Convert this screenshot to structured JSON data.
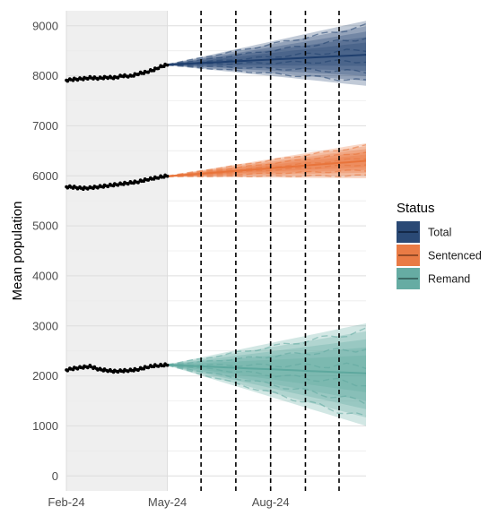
{
  "chart_data": {
    "type": "line",
    "xlabel": "",
    "ylabel": "Mean population",
    "ylim": [
      -300,
      9300
    ],
    "yticks": [
      0,
      1000,
      2000,
      3000,
      4000,
      5000,
      6000,
      7000,
      8000,
      9000
    ],
    "xlim": [
      "2024-02-01",
      "2024-10-25"
    ],
    "xticks": [
      {
        "date": "2024-02-01",
        "label": "Feb-24"
      },
      {
        "date": "2024-05-01",
        "label": "May-24"
      },
      {
        "date": "2024-08-01",
        "label": "Aug-24"
      }
    ],
    "shaded_region": {
      "from": "2024-02-01",
      "to": "2024-05-01",
      "color": "#efefef"
    },
    "vlines": [
      "2024-05-31",
      "2024-07-01",
      "2024-08-01",
      "2024-09-01",
      "2024-10-01"
    ],
    "forecast_start": "2024-05-01",
    "forecast_end": "2024-10-25",
    "legend": {
      "title": "Status",
      "position": "right"
    },
    "series": [
      {
        "name": "Total",
        "color": "#1f3f6e",
        "observed": [
          [
            "2024-02-01",
            7910
          ],
          [
            "2024-02-08",
            7930
          ],
          [
            "2024-02-15",
            7940
          ],
          [
            "2024-02-22",
            7960
          ],
          [
            "2024-03-01",
            7950
          ],
          [
            "2024-03-08",
            7970
          ],
          [
            "2024-03-15",
            7960
          ],
          [
            "2024-03-22",
            8000
          ],
          [
            "2024-03-29",
            7990
          ],
          [
            "2024-04-05",
            8040
          ],
          [
            "2024-04-12",
            8070
          ],
          [
            "2024-04-19",
            8120
          ],
          [
            "2024-04-26",
            8190
          ],
          [
            "2024-05-01",
            8220
          ]
        ],
        "forecast_mid": [
          [
            "2024-05-01",
            8220
          ],
          [
            "2024-10-25",
            8420
          ]
        ],
        "forecast_upper": [
          [
            "2024-05-01",
            8230
          ],
          [
            "2024-10-25",
            9100
          ]
        ],
        "forecast_lower": [
          [
            "2024-05-01",
            8210
          ],
          [
            "2024-10-25",
            7800
          ]
        ]
      },
      {
        "name": "Sentenced",
        "color": "#e8743b",
        "observed": [
          [
            "2024-02-01",
            5780
          ],
          [
            "2024-02-08",
            5770
          ],
          [
            "2024-02-15",
            5750
          ],
          [
            "2024-02-22",
            5760
          ],
          [
            "2024-03-01",
            5780
          ],
          [
            "2024-03-08",
            5800
          ],
          [
            "2024-03-15",
            5820
          ],
          [
            "2024-03-22",
            5840
          ],
          [
            "2024-03-29",
            5860
          ],
          [
            "2024-04-05",
            5880
          ],
          [
            "2024-04-12",
            5920
          ],
          [
            "2024-04-19",
            5950
          ],
          [
            "2024-04-26",
            5980
          ],
          [
            "2024-05-01",
            6000
          ]
        ],
        "forecast_mid": [
          [
            "2024-05-01",
            5990
          ],
          [
            "2024-10-25",
            6300
          ]
        ],
        "forecast_upper": [
          [
            "2024-05-01",
            6000
          ],
          [
            "2024-10-25",
            6650
          ]
        ],
        "forecast_lower": [
          [
            "2024-05-01",
            5980
          ],
          [
            "2024-10-25",
            5950
          ]
        ]
      },
      {
        "name": "Remand",
        "color": "#5ea89e",
        "observed": [
          [
            "2024-02-01",
            2120
          ],
          [
            "2024-02-08",
            2150
          ],
          [
            "2024-02-15",
            2170
          ],
          [
            "2024-02-22",
            2190
          ],
          [
            "2024-03-01",
            2130
          ],
          [
            "2024-03-08",
            2110
          ],
          [
            "2024-03-15",
            2090
          ],
          [
            "2024-03-22",
            2100
          ],
          [
            "2024-03-29",
            2110
          ],
          [
            "2024-04-05",
            2130
          ],
          [
            "2024-04-12",
            2170
          ],
          [
            "2024-04-19",
            2200
          ],
          [
            "2024-04-26",
            2210
          ],
          [
            "2024-05-01",
            2220
          ]
        ],
        "forecast_mid": [
          [
            "2024-05-01",
            2220
          ],
          [
            "2024-10-25",
            2050
          ]
        ],
        "forecast_upper": [
          [
            "2024-05-01",
            2230
          ],
          [
            "2024-10-25",
            3050
          ]
        ],
        "forecast_lower": [
          [
            "2024-05-01",
            2210
          ],
          [
            "2024-10-25",
            1000
          ]
        ]
      }
    ]
  }
}
